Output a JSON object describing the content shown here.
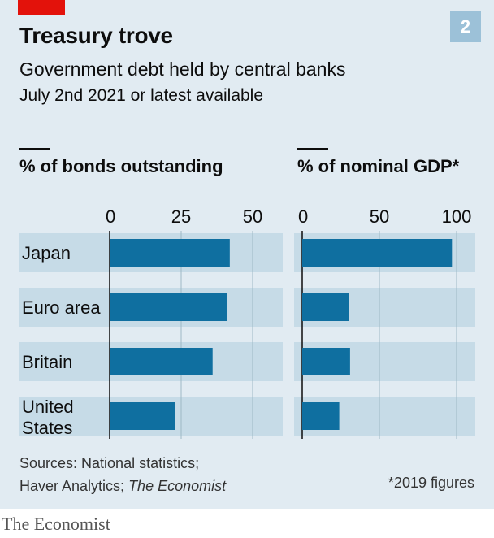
{
  "header": {
    "title": "Treasury trove",
    "subtitle": "Government debt held by central banks",
    "date_note": "July 2nd 2021 or latest available",
    "chart_number": "2"
  },
  "footer": {
    "sources_line1": "Sources: National statistics;",
    "sources_line2_prefix": "Haver Analytics; ",
    "sources_line2_italic": "The Economist",
    "footnote": "*2019 figures",
    "brand": "The Economist"
  },
  "colors": {
    "bar": "#0f6fa0",
    "band": "#c6dbe7",
    "panel": "#e1ebf2",
    "grid": "#9fb8c6"
  },
  "chart_data": [
    {
      "type": "bar",
      "orientation": "horizontal",
      "title": "% of bonds outstanding",
      "categories": [
        "Japan",
        "Euro area",
        "Britain",
        "United States"
      ],
      "values": [
        42,
        41,
        36,
        23
      ],
      "xlim": [
        0,
        50
      ],
      "ticks": [
        0,
        25,
        50
      ],
      "grid": true
    },
    {
      "type": "bar",
      "orientation": "horizontal",
      "title": "% of nominal GDP*",
      "categories": [
        "Japan",
        "Euro area",
        "Britain",
        "United States"
      ],
      "values": [
        97,
        30,
        31,
        24
      ],
      "xlim": [
        0,
        100
      ],
      "ticks": [
        0,
        50,
        100
      ],
      "grid": true
    }
  ]
}
